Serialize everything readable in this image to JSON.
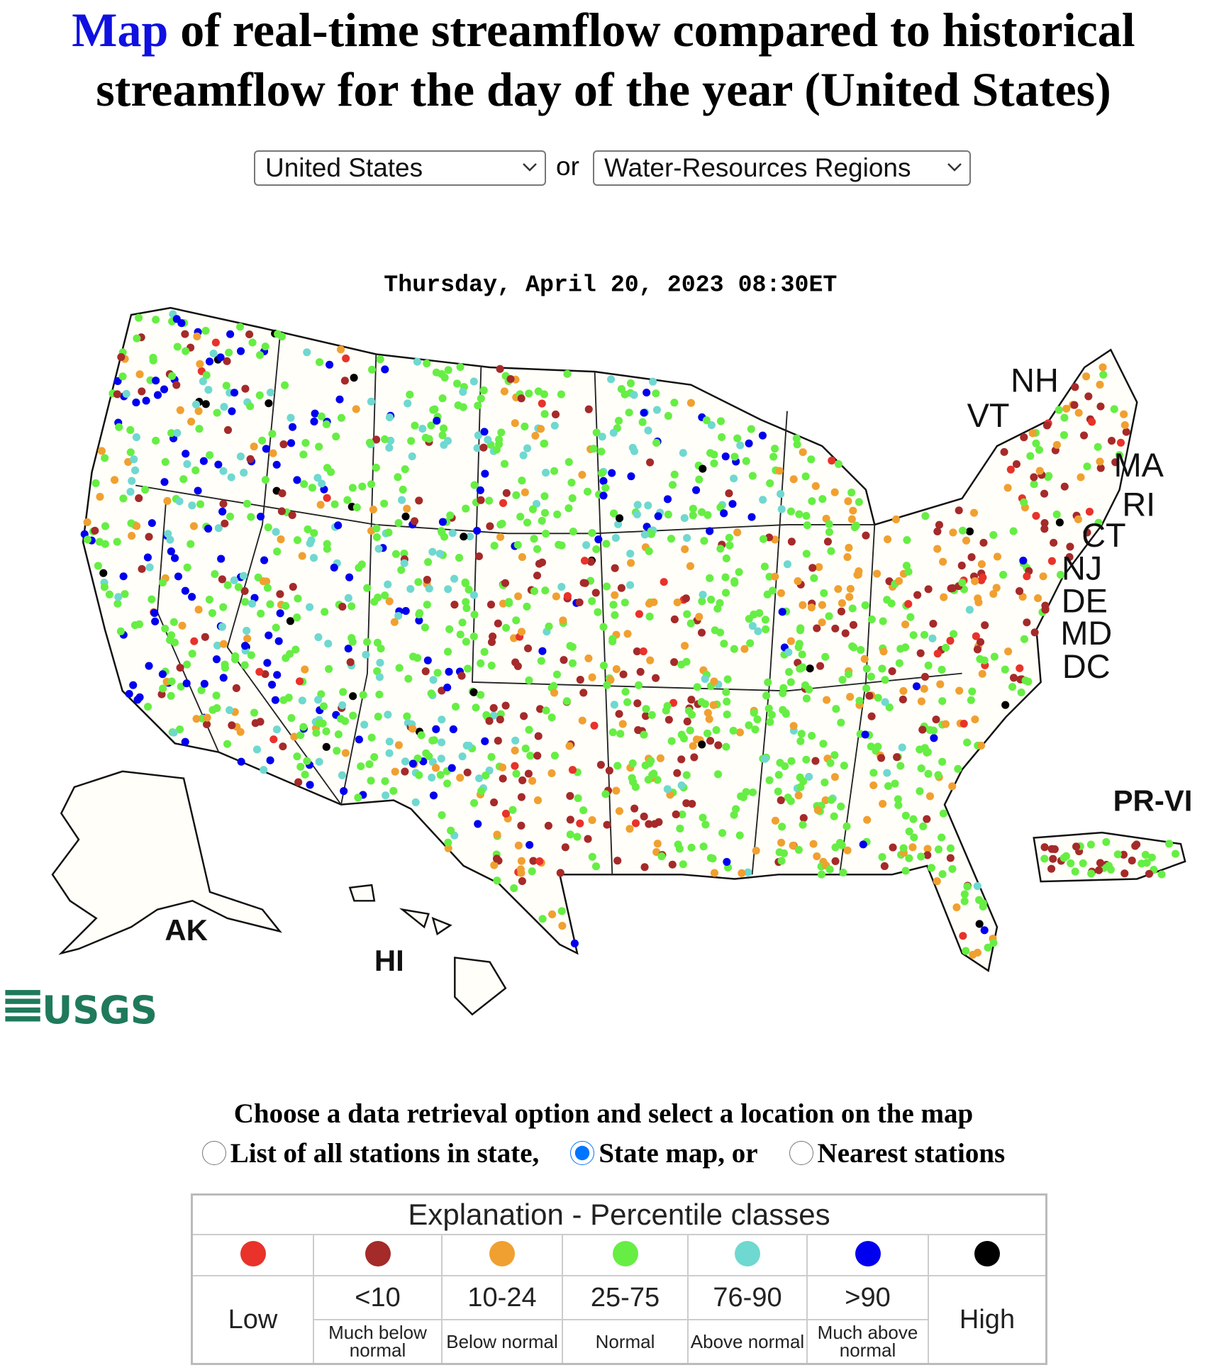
{
  "header": {
    "title_link": "Map",
    "title_rest": "of real-time streamflow compared to historical streamflow for the day of the year (United States)"
  },
  "selectors": {
    "state": "United States",
    "or": "or",
    "region": "Water-Resources Regions"
  },
  "map": {
    "timestamp": "Thursday, April 20, 2023 08:30ET",
    "state_labels": [
      "NH",
      "VT",
      "MA",
      "RI",
      "CT",
      "NJ",
      "DE",
      "MD",
      "DC"
    ],
    "territory_labels": [
      "AK",
      "HI",
      "PR-VI"
    ],
    "logo": "USGS"
  },
  "retrieval": {
    "prompt": "Choose a data retrieval option and select a location on the map",
    "options": [
      {
        "label": "List of all stations in state,",
        "selected": false
      },
      {
        "label": "State map, or",
        "selected": true
      },
      {
        "label": "Nearest stations",
        "selected": false
      }
    ]
  },
  "legend": {
    "title": "Explanation - Percentile classes",
    "classes": [
      {
        "name": "Low",
        "color": "#e8322a"
      },
      {
        "range": "<10",
        "description": "Much below normal",
        "color": "#a52a2a"
      },
      {
        "range": "10-24",
        "description": "Below normal",
        "color": "#f0a030"
      },
      {
        "range": "25-75",
        "description": "Normal",
        "color": "#66ee44"
      },
      {
        "range": "76-90",
        "description": "Above normal",
        "color": "#6fd8d0"
      },
      {
        "range": ">90",
        "description": "Much above normal",
        "color": "#0000ee"
      },
      {
        "name": "High",
        "color": "#000000"
      }
    ]
  }
}
